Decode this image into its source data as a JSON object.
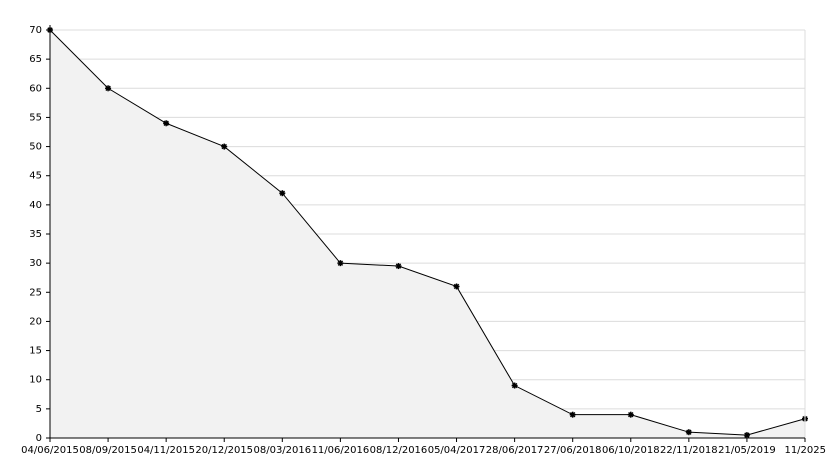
{
  "chart_data": {
    "type": "area",
    "categories": [
      "04/06/2015",
      "08/09/2015",
      "04/11/2015",
      "20/12/2015",
      "08/03/2016",
      "11/06/2016",
      "08/12/2016",
      "05/04/2017",
      "28/06/2017",
      "27/06/2018",
      "06/10/2018",
      "22/11/2018",
      "21/05/2019",
      "11/2025"
    ],
    "values": [
      70,
      60,
      54,
      50,
      42,
      30,
      29.5,
      26,
      9,
      4,
      4,
      1,
      0.5,
      3.3
    ],
    "color": "#000000",
    "fill_color": "#f2f2f2",
    "ylim": [
      0,
      70
    ],
    "yticks": [
      0,
      5,
      10,
      15,
      20,
      25,
      30,
      35,
      40,
      45,
      50,
      55,
      60,
      65,
      70
    ],
    "grid": true
  }
}
